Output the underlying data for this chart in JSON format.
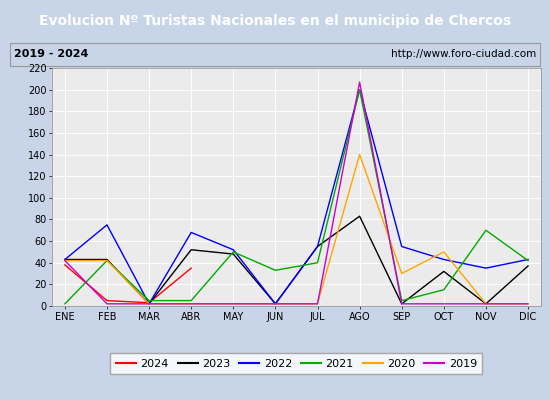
{
  "title": "Evolucion Nº Turistas Nacionales en el municipio de Chercos",
  "subtitle_left": "2019 - 2024",
  "subtitle_right": "http://www.foro-ciudad.com",
  "months": [
    "ENE",
    "FEB",
    "MAR",
    "ABR",
    "MAY",
    "JUN",
    "JUL",
    "AGO",
    "SEP",
    "OCT",
    "NOV",
    "DIC"
  ],
  "ylim": [
    0,
    220
  ],
  "yticks": [
    0,
    20,
    40,
    60,
    80,
    100,
    120,
    140,
    160,
    180,
    200,
    220
  ],
  "series": {
    "2024": {
      "color": "#ff0000",
      "data": [
        38,
        5,
        3,
        35,
        null,
        null,
        null,
        null,
        null,
        null,
        null,
        null
      ]
    },
    "2023": {
      "color": "#000000",
      "data": [
        43,
        43,
        2,
        52,
        48,
        2,
        55,
        83,
        2,
        32,
        2,
        37
      ]
    },
    "2022": {
      "color": "#0000ff",
      "data": [
        43,
        75,
        2,
        68,
        52,
        2,
        55,
        200,
        55,
        43,
        35,
        43
      ]
    },
    "2021": {
      "color": "#00aa00",
      "data": [
        2,
        42,
        5,
        5,
        50,
        33,
        40,
        200,
        5,
        15,
        70,
        42
      ]
    },
    "2020": {
      "color": "#ffa500",
      "data": [
        42,
        42,
        2,
        2,
        2,
        2,
        2,
        140,
        30,
        50,
        2,
        2
      ]
    },
    "2019": {
      "color": "#cc00cc",
      "data": [
        42,
        2,
        2,
        2,
        2,
        2,
        2,
        207,
        2,
        2,
        2,
        2
      ]
    }
  },
  "legend_order": [
    "2024",
    "2023",
    "2022",
    "2021",
    "2020",
    "2019"
  ],
  "title_bg_color": "#3c6cc8",
  "title_text_color": "#ffffff",
  "subtitle_bg_color": "#e0e0e0",
  "plot_bg_color": "#ebebeb",
  "grid_color": "#ffffff",
  "outer_bg_color": "#c8d4e8",
  "title_fontsize": 10,
  "subtitle_fontsize": 8,
  "tick_fontsize": 7,
  "legend_fontsize": 8
}
